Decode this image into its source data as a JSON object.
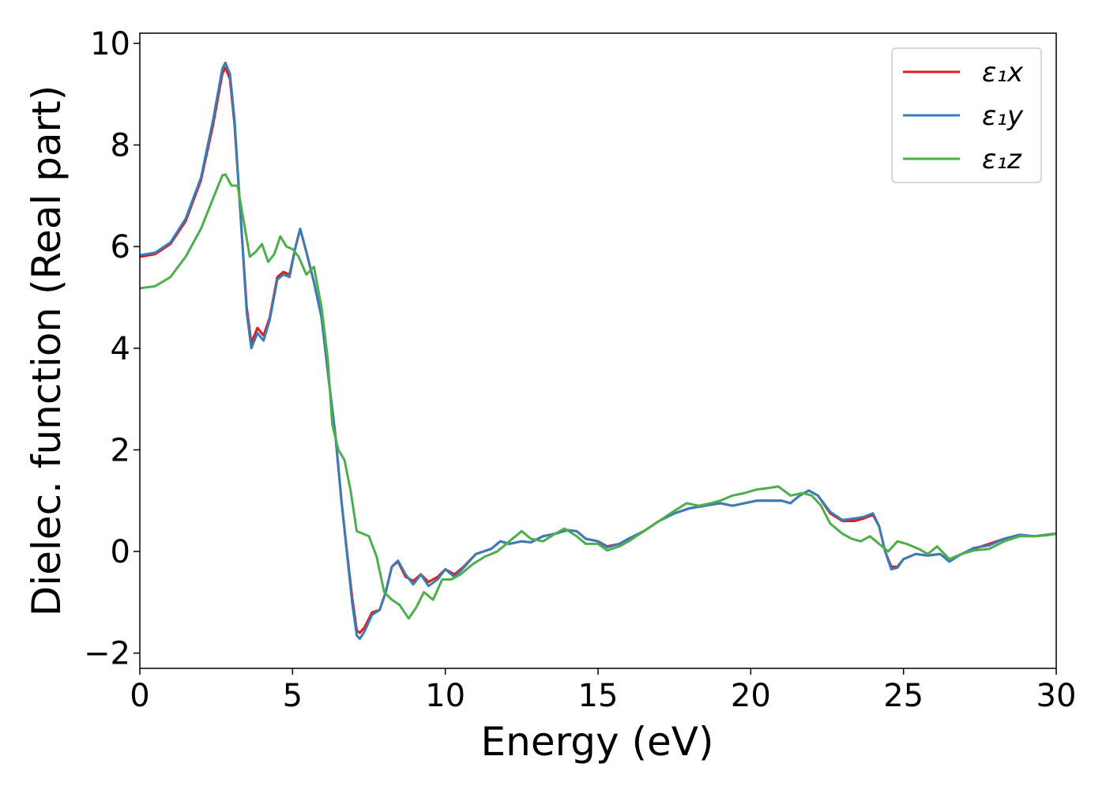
{
  "chart_data": {
    "type": "line",
    "title": "",
    "xlabel": "Energy (eV)",
    "ylabel": "Dielec. function (Real part)",
    "xlim": [
      0,
      30
    ],
    "ylim": [
      -2.3,
      10.2
    ],
    "xticks": [
      0,
      5,
      10,
      15,
      20,
      25,
      30
    ],
    "xtick_labels": [
      "0",
      "5",
      "10",
      "15",
      "20",
      "25",
      "30"
    ],
    "yticks": [
      -2,
      0,
      2,
      4,
      6,
      8,
      10
    ],
    "ytick_labels": [
      "−2",
      "0",
      "2",
      "4",
      "6",
      "8",
      "10"
    ],
    "grid": false,
    "legend_position": "top-right",
    "series": [
      {
        "name": "ε₁x",
        "color": "#e41a1c",
        "points": [
          [
            0,
            5.8
          ],
          [
            0.5,
            5.85
          ],
          [
            1.0,
            6.05
          ],
          [
            1.5,
            6.5
          ],
          [
            2.0,
            7.3
          ],
          [
            2.4,
            8.4
          ],
          [
            2.7,
            9.4
          ],
          [
            2.8,
            9.52
          ],
          [
            2.95,
            9.3
          ],
          [
            3.1,
            8.4
          ],
          [
            3.3,
            6.6
          ],
          [
            3.5,
            4.8
          ],
          [
            3.65,
            4.1
          ],
          [
            3.85,
            4.4
          ],
          [
            4.05,
            4.25
          ],
          [
            4.25,
            4.6
          ],
          [
            4.5,
            5.4
          ],
          [
            4.7,
            5.5
          ],
          [
            4.9,
            5.45
          ],
          [
            5.1,
            6.0
          ],
          [
            5.25,
            6.35
          ],
          [
            5.45,
            5.9
          ],
          [
            5.7,
            5.3
          ],
          [
            5.95,
            4.6
          ],
          [
            6.2,
            3.3
          ],
          [
            6.4,
            2.3
          ],
          [
            6.6,
            1.0
          ],
          [
            6.8,
            -0.1
          ],
          [
            6.95,
            -0.9
          ],
          [
            7.1,
            -1.55
          ],
          [
            7.2,
            -1.6
          ],
          [
            7.35,
            -1.5
          ],
          [
            7.6,
            -1.2
          ],
          [
            7.85,
            -1.15
          ],
          [
            8.05,
            -0.8
          ],
          [
            8.25,
            -0.3
          ],
          [
            8.45,
            -0.2
          ],
          [
            8.7,
            -0.5
          ],
          [
            8.95,
            -0.58
          ],
          [
            9.2,
            -0.45
          ],
          [
            9.45,
            -0.6
          ],
          [
            9.75,
            -0.5
          ],
          [
            10.0,
            -0.35
          ],
          [
            10.3,
            -0.45
          ],
          [
            10.6,
            -0.3
          ],
          [
            11.0,
            -0.05
          ],
          [
            11.5,
            0.05
          ],
          [
            11.8,
            0.2
          ],
          [
            12.1,
            0.15
          ],
          [
            12.5,
            0.2
          ],
          [
            12.8,
            0.18
          ],
          [
            13.2,
            0.3
          ],
          [
            13.6,
            0.35
          ],
          [
            14.0,
            0.42
          ],
          [
            14.3,
            0.4
          ],
          [
            14.6,
            0.25
          ],
          [
            15.0,
            0.2
          ],
          [
            15.3,
            0.1
          ],
          [
            15.7,
            0.15
          ],
          [
            16.0,
            0.25
          ],
          [
            16.5,
            0.4
          ],
          [
            17.0,
            0.6
          ],
          [
            17.5,
            0.75
          ],
          [
            18.0,
            0.85
          ],
          [
            18.5,
            0.9
          ],
          [
            19.0,
            0.95
          ],
          [
            19.4,
            0.9
          ],
          [
            19.8,
            0.95
          ],
          [
            20.2,
            1.0
          ],
          [
            20.6,
            1.0
          ],
          [
            21.0,
            1.0
          ],
          [
            21.3,
            0.95
          ],
          [
            21.6,
            1.1
          ],
          [
            21.9,
            1.2
          ],
          [
            22.2,
            1.1
          ],
          [
            22.6,
            0.75
          ],
          [
            23.0,
            0.6
          ],
          [
            23.4,
            0.6
          ],
          [
            23.7,
            0.65
          ],
          [
            24.0,
            0.72
          ],
          [
            24.2,
            0.5
          ],
          [
            24.4,
            0.0
          ],
          [
            24.6,
            -0.3
          ],
          [
            24.8,
            -0.3
          ],
          [
            25.0,
            -0.15
          ],
          [
            25.4,
            -0.05
          ],
          [
            25.8,
            -0.08
          ],
          [
            26.2,
            -0.05
          ],
          [
            26.5,
            -0.18
          ],
          [
            26.9,
            -0.05
          ],
          [
            27.3,
            0.05
          ],
          [
            27.8,
            0.15
          ],
          [
            28.3,
            0.25
          ],
          [
            28.8,
            0.32
          ],
          [
            29.3,
            0.3
          ],
          [
            29.7,
            0.33
          ],
          [
            30.0,
            0.35
          ]
        ]
      },
      {
        "name": "ε₁y",
        "color": "#377eb8",
        "points": [
          [
            0,
            5.83
          ],
          [
            0.5,
            5.88
          ],
          [
            1.0,
            6.08
          ],
          [
            1.5,
            6.55
          ],
          [
            2.0,
            7.35
          ],
          [
            2.4,
            8.5
          ],
          [
            2.7,
            9.5
          ],
          [
            2.8,
            9.62
          ],
          [
            2.95,
            9.4
          ],
          [
            3.1,
            8.5
          ],
          [
            3.3,
            6.6
          ],
          [
            3.5,
            4.7
          ],
          [
            3.65,
            4.0
          ],
          [
            3.85,
            4.3
          ],
          [
            4.05,
            4.15
          ],
          [
            4.25,
            4.55
          ],
          [
            4.5,
            5.35
          ],
          [
            4.7,
            5.45
          ],
          [
            4.9,
            5.4
          ],
          [
            5.1,
            6.0
          ],
          [
            5.25,
            6.35
          ],
          [
            5.45,
            5.9
          ],
          [
            5.7,
            5.3
          ],
          [
            5.95,
            4.6
          ],
          [
            6.2,
            3.3
          ],
          [
            6.4,
            2.3
          ],
          [
            6.6,
            1.0
          ],
          [
            6.8,
            -0.15
          ],
          [
            6.95,
            -1.0
          ],
          [
            7.1,
            -1.65
          ],
          [
            7.2,
            -1.72
          ],
          [
            7.35,
            -1.58
          ],
          [
            7.6,
            -1.25
          ],
          [
            7.85,
            -1.15
          ],
          [
            8.05,
            -0.8
          ],
          [
            8.25,
            -0.3
          ],
          [
            8.45,
            -0.18
          ],
          [
            8.7,
            -0.45
          ],
          [
            8.95,
            -0.65
          ],
          [
            9.2,
            -0.45
          ],
          [
            9.45,
            -0.68
          ],
          [
            9.75,
            -0.55
          ],
          [
            10.0,
            -0.35
          ],
          [
            10.3,
            -0.5
          ],
          [
            10.6,
            -0.32
          ],
          [
            11.0,
            -0.05
          ],
          [
            11.5,
            0.05
          ],
          [
            11.8,
            0.2
          ],
          [
            12.1,
            0.15
          ],
          [
            12.5,
            0.2
          ],
          [
            12.8,
            0.18
          ],
          [
            13.2,
            0.3
          ],
          [
            13.6,
            0.35
          ],
          [
            14.0,
            0.42
          ],
          [
            14.3,
            0.4
          ],
          [
            14.6,
            0.25
          ],
          [
            15.0,
            0.2
          ],
          [
            15.3,
            0.08
          ],
          [
            15.7,
            0.15
          ],
          [
            16.0,
            0.25
          ],
          [
            16.5,
            0.4
          ],
          [
            17.0,
            0.6
          ],
          [
            17.5,
            0.75
          ],
          [
            18.0,
            0.85
          ],
          [
            18.5,
            0.9
          ],
          [
            19.0,
            0.95
          ],
          [
            19.4,
            0.9
          ],
          [
            19.8,
            0.95
          ],
          [
            20.2,
            1.0
          ],
          [
            20.6,
            1.0
          ],
          [
            21.0,
            1.0
          ],
          [
            21.3,
            0.95
          ],
          [
            21.6,
            1.1
          ],
          [
            21.9,
            1.2
          ],
          [
            22.2,
            1.1
          ],
          [
            22.6,
            0.78
          ],
          [
            23.0,
            0.62
          ],
          [
            23.4,
            0.65
          ],
          [
            23.7,
            0.68
          ],
          [
            24.0,
            0.75
          ],
          [
            24.2,
            0.5
          ],
          [
            24.4,
            0.0
          ],
          [
            24.6,
            -0.35
          ],
          [
            24.8,
            -0.32
          ],
          [
            25.0,
            -0.15
          ],
          [
            25.4,
            -0.05
          ],
          [
            25.8,
            -0.08
          ],
          [
            26.2,
            -0.05
          ],
          [
            26.5,
            -0.2
          ],
          [
            26.9,
            -0.05
          ],
          [
            27.3,
            0.07
          ],
          [
            27.8,
            0.12
          ],
          [
            28.3,
            0.25
          ],
          [
            28.8,
            0.33
          ],
          [
            29.3,
            0.3
          ],
          [
            29.7,
            0.33
          ],
          [
            30.0,
            0.35
          ]
        ]
      },
      {
        "name": "ε₁z",
        "color": "#4daf4a",
        "points": [
          [
            0,
            5.18
          ],
          [
            0.5,
            5.22
          ],
          [
            1.0,
            5.4
          ],
          [
            1.5,
            5.8
          ],
          [
            2.0,
            6.35
          ],
          [
            2.4,
            6.95
          ],
          [
            2.7,
            7.4
          ],
          [
            2.8,
            7.42
          ],
          [
            3.0,
            7.2
          ],
          [
            3.2,
            7.2
          ],
          [
            3.4,
            6.5
          ],
          [
            3.6,
            5.8
          ],
          [
            3.8,
            5.9
          ],
          [
            4.0,
            6.05
          ],
          [
            4.2,
            5.7
          ],
          [
            4.4,
            5.85
          ],
          [
            4.6,
            6.2
          ],
          [
            4.8,
            6.0
          ],
          [
            5.0,
            5.95
          ],
          [
            5.2,
            5.8
          ],
          [
            5.45,
            5.45
          ],
          [
            5.7,
            5.6
          ],
          [
            5.95,
            4.8
          ],
          [
            6.15,
            3.8
          ],
          [
            6.3,
            2.5
          ],
          [
            6.5,
            2.0
          ],
          [
            6.7,
            1.8
          ],
          [
            6.9,
            1.2
          ],
          [
            7.1,
            0.4
          ],
          [
            7.3,
            0.35
          ],
          [
            7.5,
            0.3
          ],
          [
            7.75,
            -0.1
          ],
          [
            8.0,
            -0.8
          ],
          [
            8.25,
            -0.95
          ],
          [
            8.5,
            -1.05
          ],
          [
            8.8,
            -1.32
          ],
          [
            9.05,
            -1.1
          ],
          [
            9.3,
            -0.8
          ],
          [
            9.6,
            -0.95
          ],
          [
            9.9,
            -0.55
          ],
          [
            10.2,
            -0.55
          ],
          [
            10.5,
            -0.45
          ],
          [
            10.9,
            -0.25
          ],
          [
            11.3,
            -0.1
          ],
          [
            11.7,
            0.0
          ],
          [
            12.1,
            0.2
          ],
          [
            12.5,
            0.4
          ],
          [
            12.8,
            0.25
          ],
          [
            13.2,
            0.2
          ],
          [
            13.6,
            0.35
          ],
          [
            13.9,
            0.45
          ],
          [
            14.3,
            0.3
          ],
          [
            14.6,
            0.15
          ],
          [
            15.0,
            0.15
          ],
          [
            15.3,
            0.02
          ],
          [
            15.7,
            0.1
          ],
          [
            16.0,
            0.2
          ],
          [
            16.5,
            0.4
          ],
          [
            17.0,
            0.6
          ],
          [
            17.5,
            0.8
          ],
          [
            17.9,
            0.95
          ],
          [
            18.3,
            0.9
          ],
          [
            18.7,
            0.95
          ],
          [
            19.0,
            1.0
          ],
          [
            19.4,
            1.1
          ],
          [
            19.8,
            1.15
          ],
          [
            20.2,
            1.22
          ],
          [
            20.6,
            1.25
          ],
          [
            20.9,
            1.28
          ],
          [
            21.3,
            1.1
          ],
          [
            21.7,
            1.15
          ],
          [
            22.0,
            1.1
          ],
          [
            22.3,
            0.9
          ],
          [
            22.6,
            0.55
          ],
          [
            23.0,
            0.35
          ],
          [
            23.3,
            0.25
          ],
          [
            23.6,
            0.2
          ],
          [
            23.9,
            0.3
          ],
          [
            24.2,
            0.15
          ],
          [
            24.5,
            0.0
          ],
          [
            24.8,
            0.2
          ],
          [
            25.1,
            0.15
          ],
          [
            25.5,
            0.05
          ],
          [
            25.8,
            -0.05
          ],
          [
            26.1,
            0.1
          ],
          [
            26.5,
            -0.15
          ],
          [
            26.9,
            -0.05
          ],
          [
            27.3,
            0.02
          ],
          [
            27.8,
            0.05
          ],
          [
            28.3,
            0.2
          ],
          [
            28.8,
            0.3
          ],
          [
            29.3,
            0.3
          ],
          [
            29.7,
            0.32
          ],
          [
            30.0,
            0.35
          ]
        ]
      }
    ]
  }
}
